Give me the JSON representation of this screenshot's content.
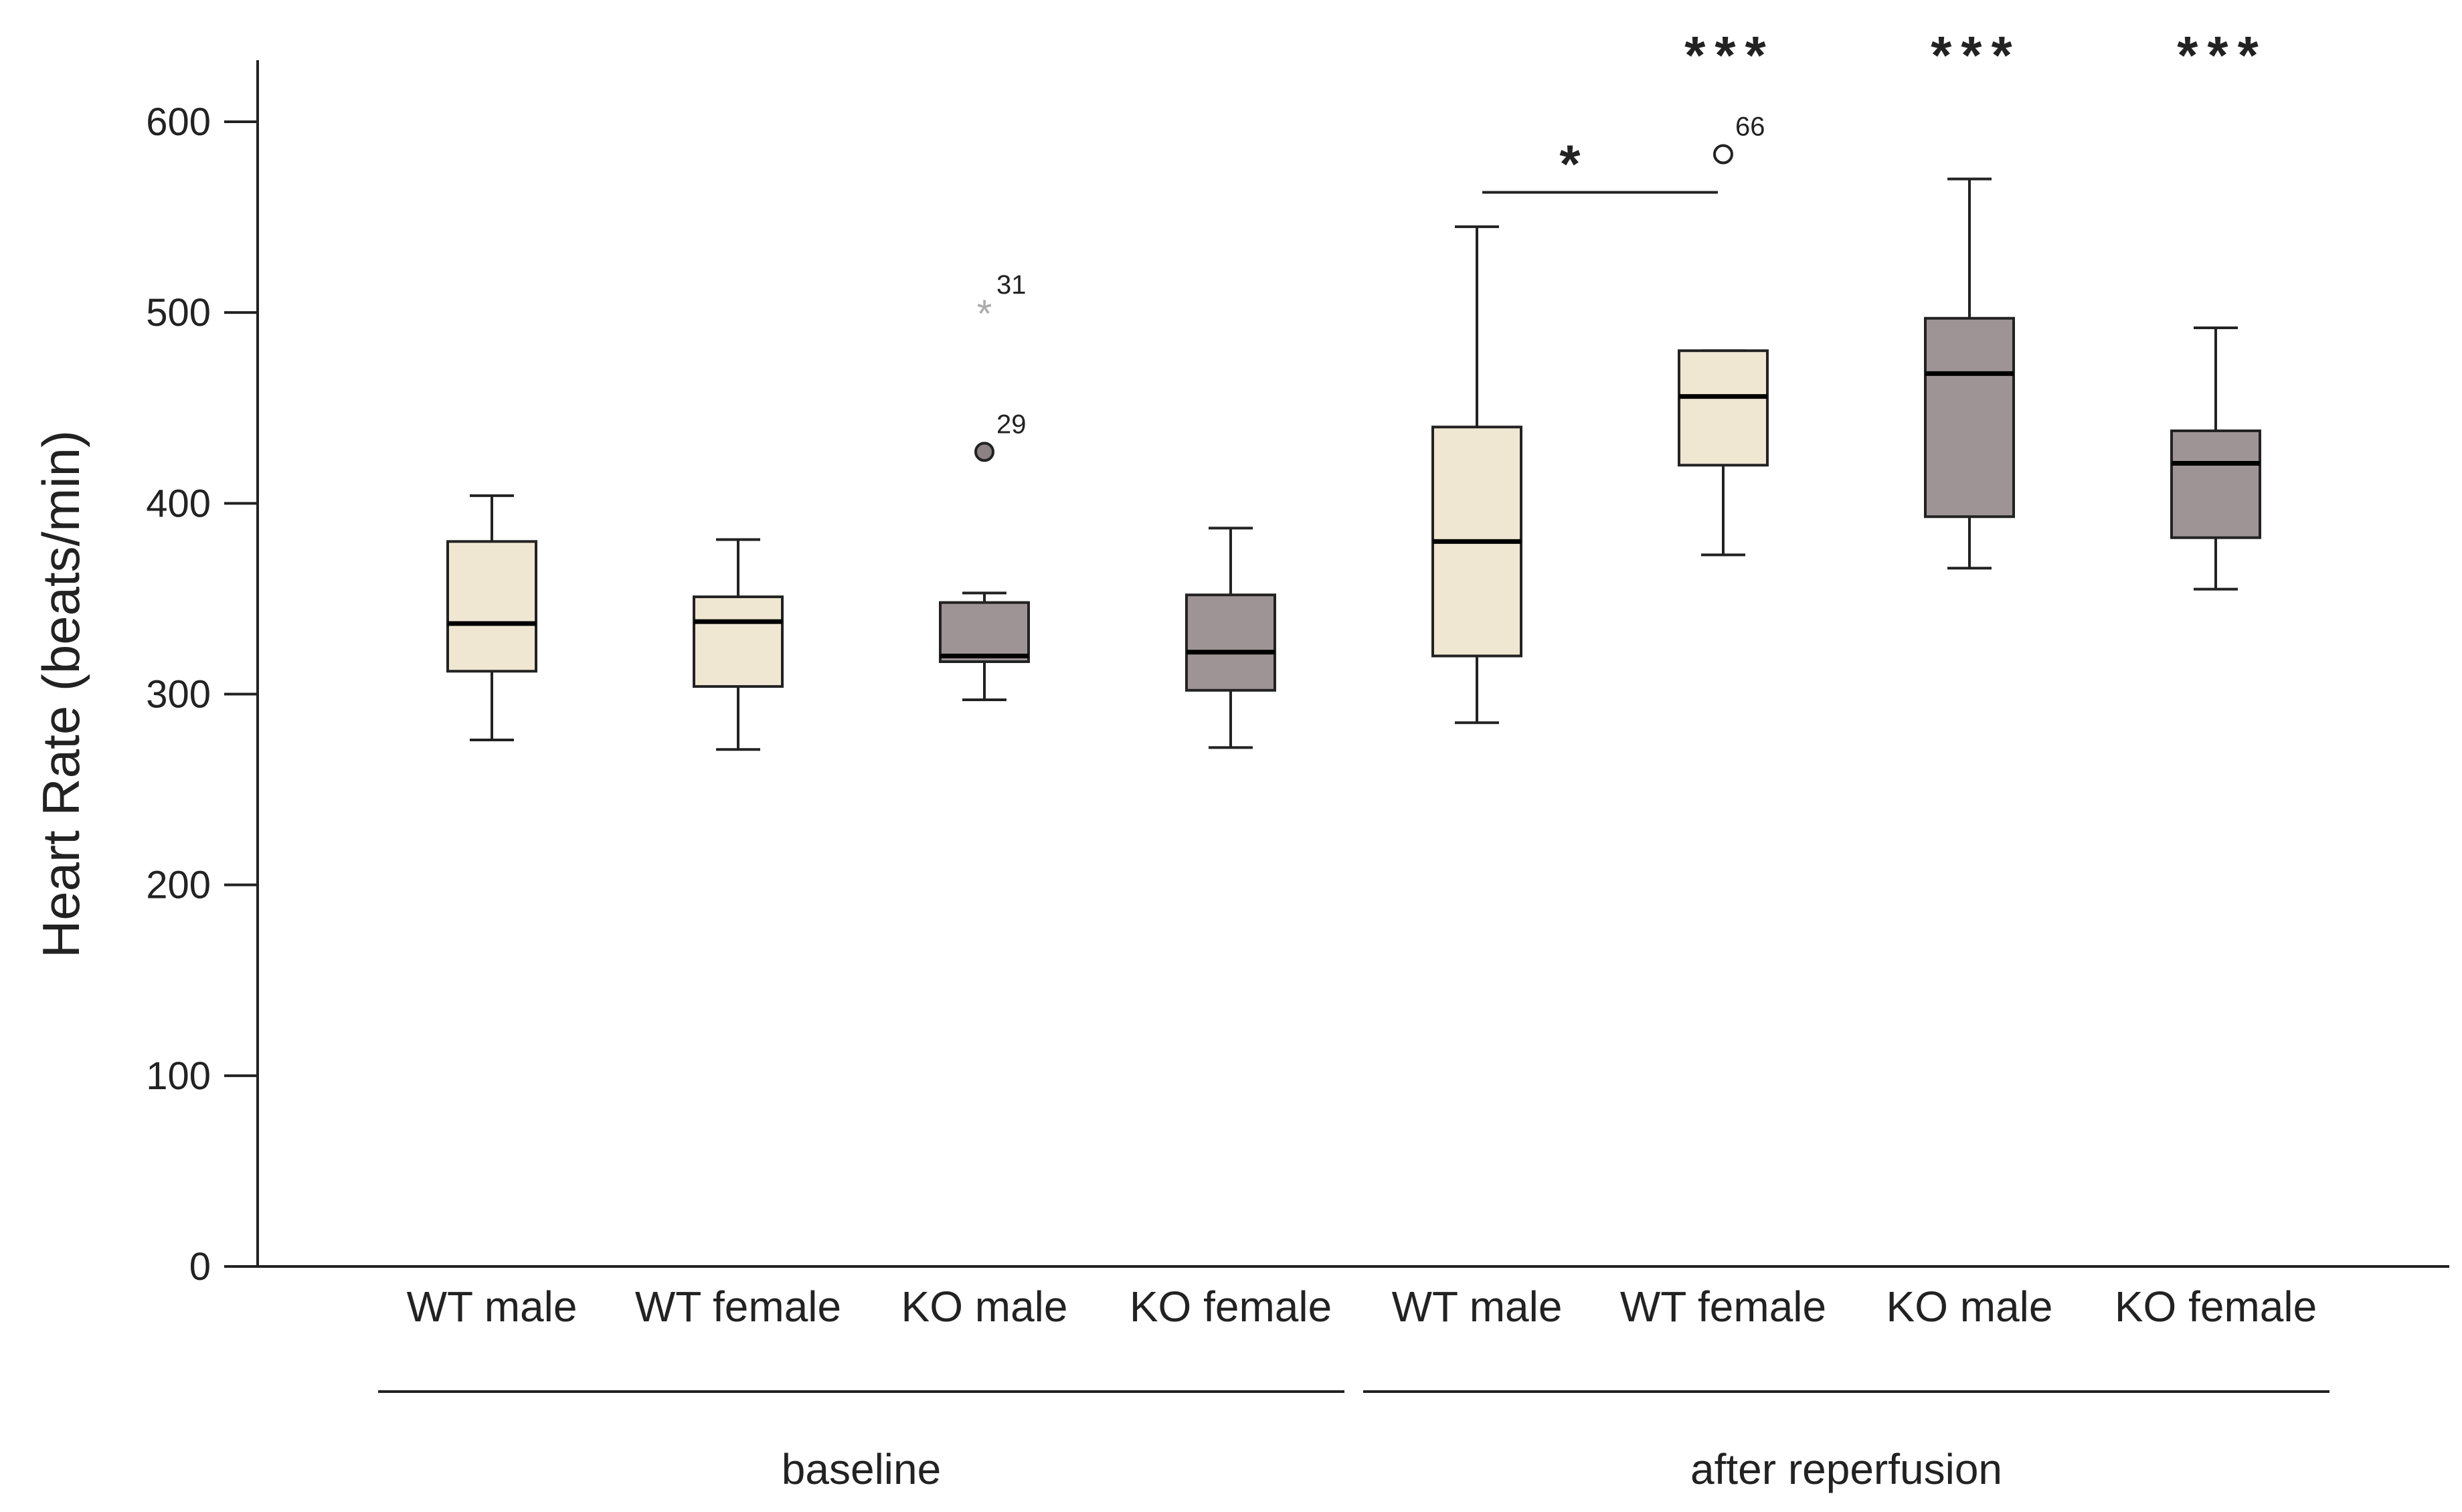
{
  "chart_data": {
    "type": "box",
    "title": "",
    "ylabel": "Heart Rate (beats/min)",
    "xlabel": "",
    "ylim": [
      0,
      630
    ],
    "yticks": [
      0,
      100,
      200,
      300,
      400,
      500,
      600
    ],
    "grid": false,
    "groups": [
      {
        "label": "baseline",
        "categories": [
          0,
          1,
          2,
          3
        ]
      },
      {
        "label": "after reperfusion",
        "categories": [
          4,
          5,
          6,
          7
        ]
      }
    ],
    "boxes": [
      {
        "label": "WT male",
        "genotype": "WT",
        "min": 276,
        "q1": 312,
        "median": 337,
        "q3": 380,
        "max": 404,
        "outliers": []
      },
      {
        "label": "WT female",
        "genotype": "WT",
        "min": 271,
        "q1": 304,
        "median": 338,
        "q3": 351,
        "max": 381,
        "outliers": []
      },
      {
        "label": "KO male",
        "genotype": "KO",
        "min": 297,
        "q1": 317,
        "median": 320,
        "q3": 348,
        "max": 353,
        "outliers": [
          {
            "value": 500,
            "label": "31",
            "kind": "extreme"
          },
          {
            "value": 427,
            "label": "29",
            "kind": "outlier"
          }
        ]
      },
      {
        "label": "KO female",
        "genotype": "KO",
        "min": 272,
        "q1": 302,
        "median": 322,
        "q3": 352,
        "max": 387,
        "outliers": []
      },
      {
        "label": "WT male",
        "genotype": "WT",
        "min": 285,
        "q1": 320,
        "median": 380,
        "q3": 440,
        "max": 545,
        "outliers": []
      },
      {
        "label": "WT female",
        "genotype": "WT",
        "min": 373,
        "q1": 420,
        "median": 456,
        "q3": 480,
        "max": 480,
        "outliers": [
          {
            "value": 583,
            "label": "66",
            "kind": "outlier"
          }
        ]
      },
      {
        "label": "KO male",
        "genotype": "KO",
        "min": 366,
        "q1": 393,
        "median": 468,
        "q3": 497,
        "max": 570,
        "outliers": []
      },
      {
        "label": "KO female",
        "genotype": "KO",
        "min": 355,
        "q1": 382,
        "median": 421,
        "q3": 438,
        "max": 492,
        "outliers": []
      }
    ],
    "significance": [
      {
        "text": "***",
        "category": 5
      },
      {
        "text": "***",
        "category": 6
      },
      {
        "text": "***",
        "category": 7
      },
      {
        "text": "*",
        "bracket_from": 4,
        "bracket_to": 5,
        "y": 563
      }
    ],
    "colors": {
      "WT": "#f0e7d3",
      "KO": "#9e9495",
      "stroke": "#222222",
      "outlier_fill_KO": "#8a8283",
      "extreme_star": "#aaaaaa"
    }
  }
}
